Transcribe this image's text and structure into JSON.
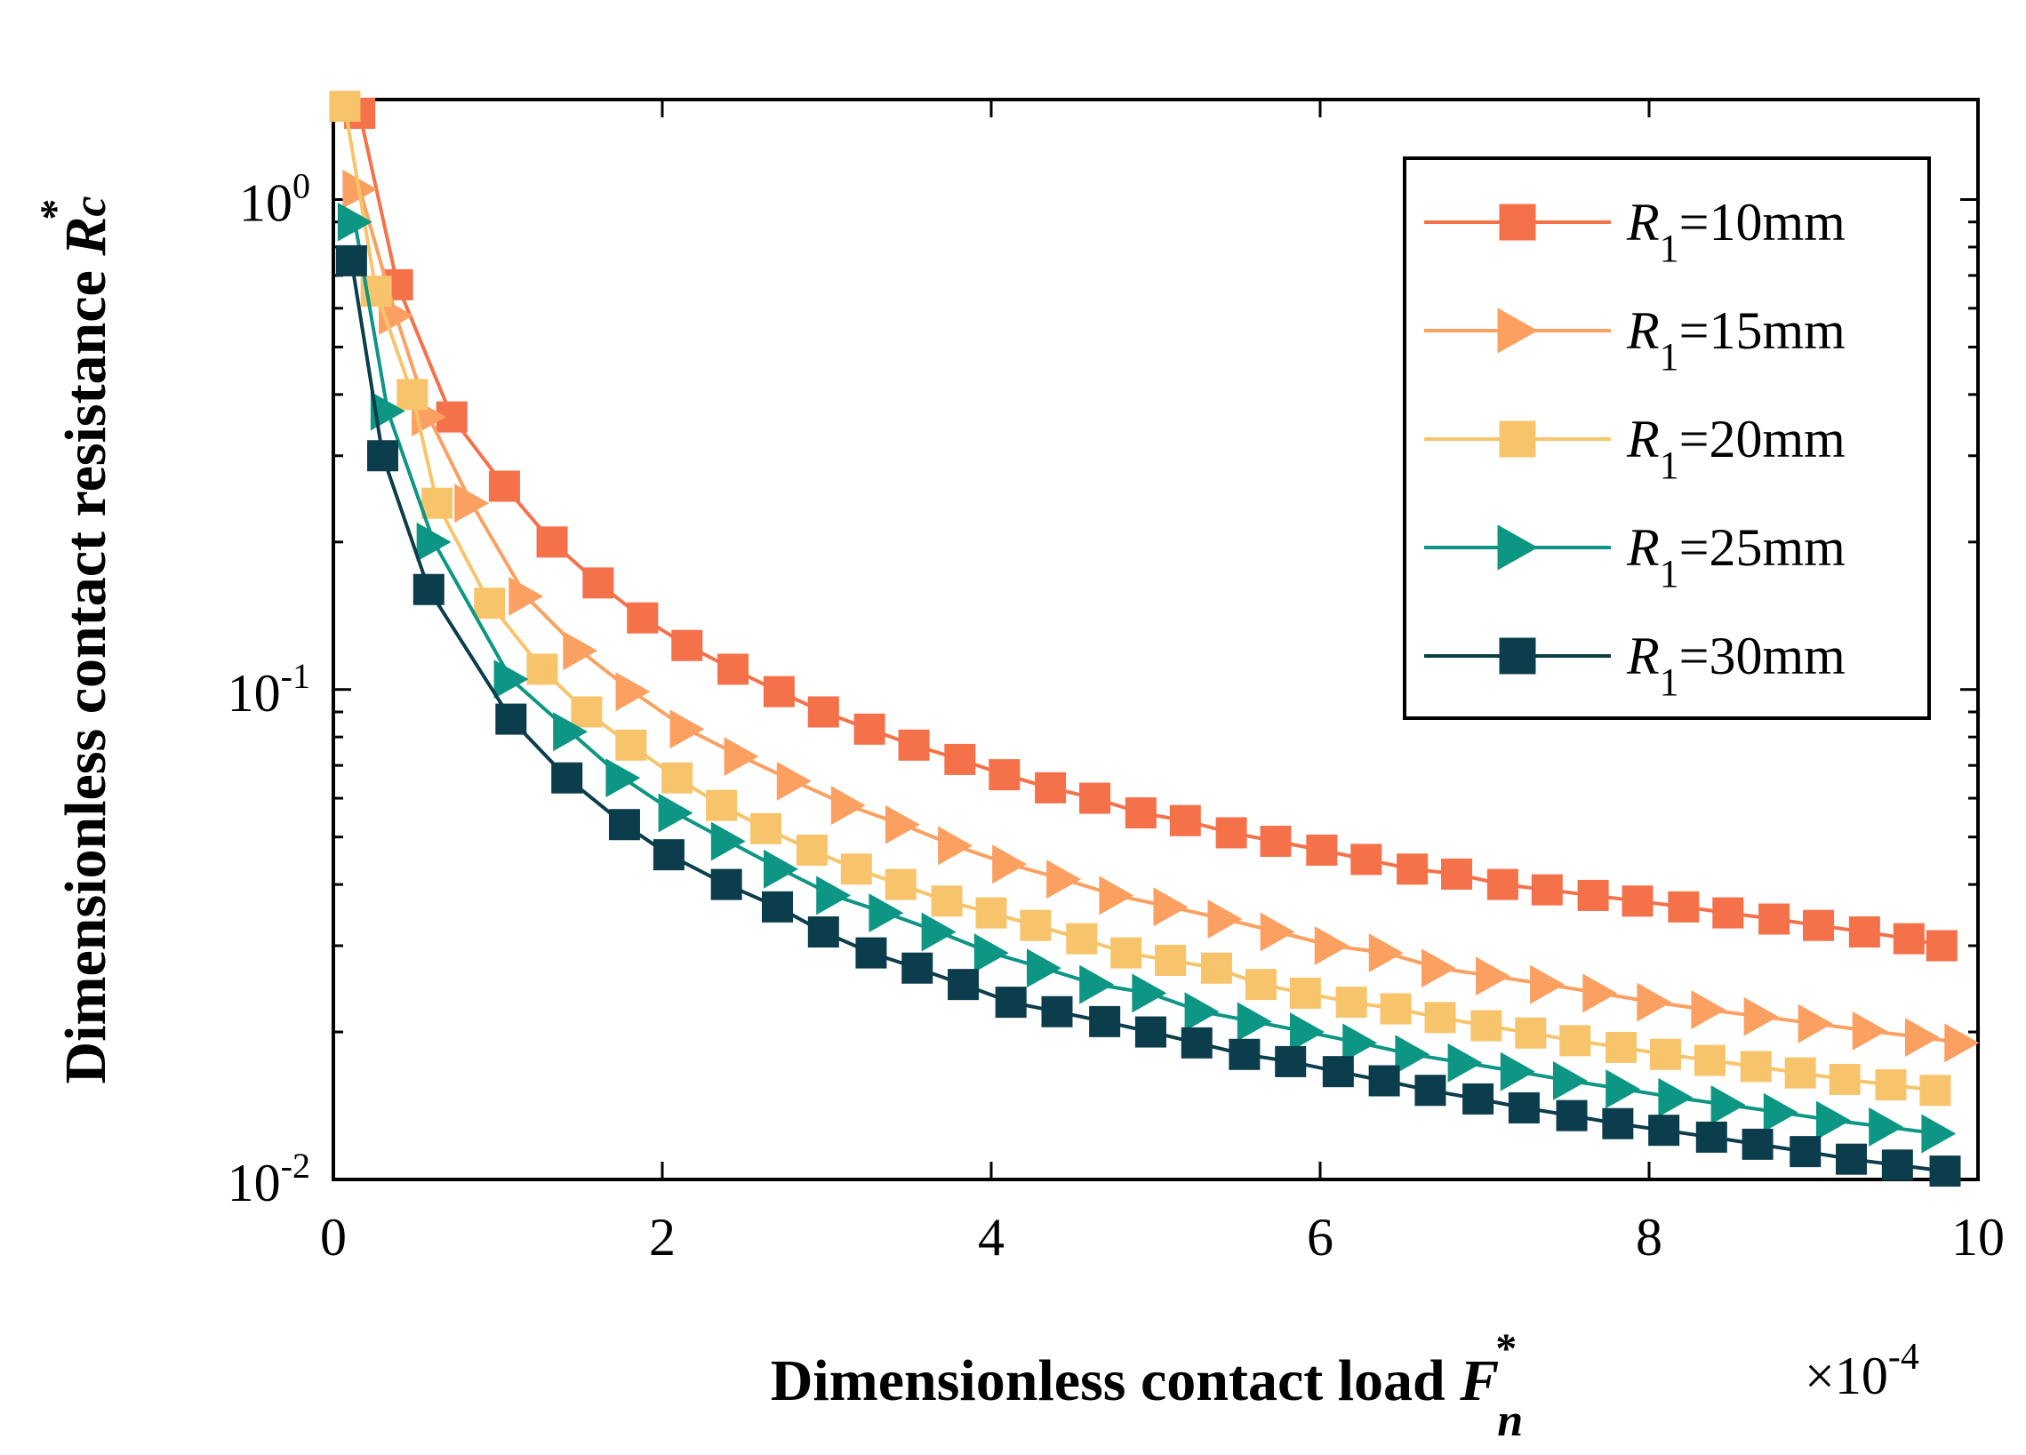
{
  "chart_data": {
    "type": "line",
    "title": "",
    "xlabel": "Dimensionless contact load",
    "xlabel_symbol": "F",
    "xlabel_symbol_sub": "n",
    "xlabel_symbol_sup": "*",
    "ylabel": "Dimensionless contact resistance",
    "ylabel_symbol": "R",
    "ylabel_symbol_sub": "c",
    "ylabel_symbol_sup": "*",
    "x_multiplier": "×10",
    "x_multiplier_exp": "-4",
    "xscale": "linear",
    "yscale": "log",
    "xlim": [
      0,
      10
    ],
    "ylim": [
      0.01,
      1.6
    ],
    "x_ticks": [
      0,
      2,
      4,
      6,
      8,
      10
    ],
    "x_tick_labels": [
      "0",
      "2",
      "4",
      "6",
      "8",
      "10"
    ],
    "y_ticks": [
      0.01,
      0.1,
      1
    ],
    "y_tick_label_base": "10",
    "y_tick_label_exps": [
      "-2",
      "-1",
      "0"
    ],
    "legend_position": "top-right",
    "grid": false,
    "series": [
      {
        "name": "R1=10mm",
        "legend_symbol": "R",
        "legend_sub": "1",
        "legend_rest": "=10mm",
        "color": "#F4714A",
        "marker": "square",
        "x": [
          0.16,
          0.39,
          0.72,
          1.04,
          1.33,
          1.61,
          1.88,
          2.15,
          2.43,
          2.71,
          2.98,
          3.26,
          3.53,
          3.81,
          4.08,
          4.36,
          4.63,
          4.91,
          5.18,
          5.46,
          5.73,
          6.01,
          6.28,
          6.56,
          6.83,
          7.11,
          7.38,
          7.66,
          7.93,
          8.21,
          8.48,
          8.76,
          9.03,
          9.31,
          9.58,
          9.78
        ],
        "y": [
          1.5,
          0.67,
          0.36,
          0.26,
          0.2,
          0.165,
          0.14,
          0.123,
          0.11,
          0.099,
          0.09,
          0.083,
          0.077,
          0.072,
          0.067,
          0.063,
          0.06,
          0.056,
          0.054,
          0.051,
          0.049,
          0.047,
          0.045,
          0.043,
          0.042,
          0.04,
          0.039,
          0.038,
          0.037,
          0.036,
          0.035,
          0.034,
          0.033,
          0.032,
          0.031,
          0.03
        ]
      },
      {
        "name": "R1=15mm",
        "legend_symbol": "R",
        "legend_sub": "1",
        "legend_rest": "=15mm",
        "color": "#FBA061",
        "marker": "triangle-right",
        "x": [
          0.16,
          0.38,
          0.58,
          0.84,
          1.17,
          1.5,
          1.82,
          2.15,
          2.48,
          2.8,
          3.13,
          3.46,
          3.78,
          4.11,
          4.44,
          4.76,
          5.09,
          5.42,
          5.74,
          6.07,
          6.4,
          6.72,
          7.05,
          7.38,
          7.7,
          8.03,
          8.36,
          8.68,
          9.01,
          9.34,
          9.66,
          9.9
        ],
        "y": [
          1.05,
          0.58,
          0.36,
          0.24,
          0.155,
          0.12,
          0.099,
          0.083,
          0.073,
          0.065,
          0.058,
          0.053,
          0.048,
          0.044,
          0.041,
          0.038,
          0.036,
          0.034,
          0.032,
          0.03,
          0.029,
          0.027,
          0.026,
          0.025,
          0.024,
          0.023,
          0.0222,
          0.0215,
          0.0208,
          0.0201,
          0.0195,
          0.019
        ]
      },
      {
        "name": "R1=20mm",
        "legend_symbol": "R",
        "legend_sub": "1",
        "legend_rest": "=20mm",
        "color": "#F8C46B",
        "marker": "square",
        "x": [
          0.07,
          0.26,
          0.48,
          0.63,
          0.95,
          1.27,
          1.54,
          1.81,
          2.09,
          2.36,
          2.63,
          2.91,
          3.18,
          3.45,
          3.73,
          4.0,
          4.27,
          4.55,
          4.82,
          5.09,
          5.37,
          5.64,
          5.91,
          6.19,
          6.46,
          6.73,
          7.01,
          7.28,
          7.55,
          7.83,
          8.1,
          8.37,
          8.65,
          8.92,
          9.19,
          9.47,
          9.74
        ],
        "y": [
          1.55,
          0.65,
          0.4,
          0.24,
          0.15,
          0.11,
          0.09,
          0.077,
          0.066,
          0.058,
          0.052,
          0.047,
          0.043,
          0.04,
          0.037,
          0.035,
          0.033,
          0.031,
          0.029,
          0.028,
          0.027,
          0.025,
          0.024,
          0.023,
          0.0223,
          0.0214,
          0.0206,
          0.0199,
          0.0192,
          0.0186,
          0.018,
          0.0175,
          0.017,
          0.0165,
          0.016,
          0.0156,
          0.0152
        ]
      },
      {
        "name": "R1=25mm",
        "legend_symbol": "R",
        "legend_sub": "1",
        "legend_rest": "=25mm",
        "color": "#0E9684",
        "marker": "triangle-right",
        "x": [
          0.13,
          0.33,
          0.61,
          1.08,
          1.44,
          1.76,
          2.08,
          2.4,
          2.72,
          3.04,
          3.36,
          3.68,
          4.0,
          4.32,
          4.64,
          4.96,
          5.28,
          5.6,
          5.92,
          6.24,
          6.56,
          6.88,
          7.2,
          7.52,
          7.84,
          8.16,
          8.48,
          8.8,
          9.12,
          9.44,
          9.76
        ],
        "y": [
          0.9,
          0.37,
          0.2,
          0.105,
          0.082,
          0.066,
          0.056,
          0.049,
          0.043,
          0.038,
          0.035,
          0.032,
          0.029,
          0.027,
          0.025,
          0.024,
          0.022,
          0.021,
          0.02,
          0.019,
          0.018,
          0.0173,
          0.0166,
          0.0159,
          0.0153,
          0.0147,
          0.0142,
          0.0137,
          0.0132,
          0.0128,
          0.0124
        ]
      },
      {
        "name": "R1=30mm",
        "legend_symbol": "R",
        "legend_sub": "1",
        "legend_rest": "=30mm",
        "color": "#0B3D4C",
        "marker": "square",
        "x": [
          0.11,
          0.3,
          0.58,
          1.08,
          1.42,
          1.77,
          2.04,
          2.39,
          2.7,
          2.98,
          3.27,
          3.55,
          3.83,
          4.12,
          4.4,
          4.69,
          4.97,
          5.25,
          5.54,
          5.82,
          6.11,
          6.39,
          6.67,
          6.96,
          7.24,
          7.53,
          7.81,
          8.09,
          8.38,
          8.66,
          8.95,
          9.23,
          9.51,
          9.8
        ],
        "y": [
          0.75,
          0.3,
          0.16,
          0.087,
          0.066,
          0.053,
          0.046,
          0.04,
          0.036,
          0.032,
          0.029,
          0.027,
          0.025,
          0.023,
          0.022,
          0.021,
          0.02,
          0.019,
          0.018,
          0.0174,
          0.0166,
          0.0159,
          0.0152,
          0.0146,
          0.014,
          0.0135,
          0.013,
          0.0126,
          0.0122,
          0.0118,
          0.0114,
          0.011,
          0.0107,
          0.0104
        ]
      }
    ]
  }
}
